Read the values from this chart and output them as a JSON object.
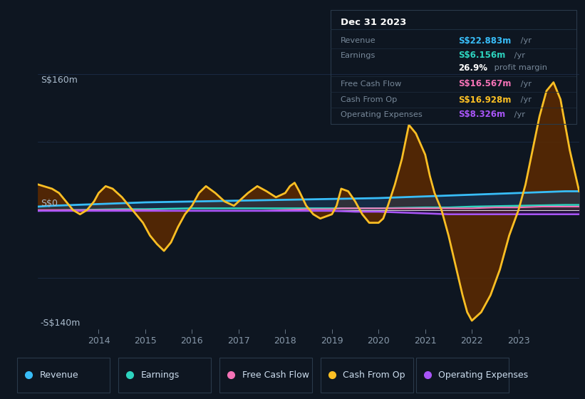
{
  "background_color": "#0e1621",
  "plot_bg_color": "#0e1621",
  "title_box_bg": "#050a0f",
  "legend_bg": "#0e1621",
  "ylim": [
    -140,
    160
  ],
  "xlim": [
    2012.7,
    2024.3
  ],
  "xticks": [
    2014,
    2015,
    2016,
    2017,
    2018,
    2019,
    2020,
    2021,
    2022,
    2023
  ],
  "zero_line_color": "#ffffff",
  "revenue_color": "#38bdf8",
  "revenue_fill": "#1a3a5c",
  "earnings_color": "#2dd4bf",
  "earnings_fill": "#0d4a40",
  "fcf_color": "#f472b6",
  "fcf_fill": "#5c1030",
  "cfop_color": "#fbbf24",
  "cfop_fill": "#5c2a00",
  "opex_color": "#a855f7",
  "opex_fill": "#3b1060",
  "legend_items": [
    {
      "label": "Revenue",
      "color": "#38bdf8"
    },
    {
      "label": "Earnings",
      "color": "#2dd4bf"
    },
    {
      "label": "Free Cash Flow",
      "color": "#f472b6"
    },
    {
      "label": "Cash From Op",
      "color": "#fbbf24"
    },
    {
      "label": "Operating Expenses",
      "color": "#a855f7"
    }
  ],
  "info_date": "Dec 31 2023",
  "info_rows": [
    {
      "label": "Revenue",
      "value": "S$22.883m",
      "unit": " /yr",
      "color": "#38bdf8"
    },
    {
      "label": "Earnings",
      "value": "S$6.156m",
      "unit": " /yr",
      "color": "#2dd4bf"
    },
    {
      "label": "",
      "value": "26.9%",
      "unit": " profit margin",
      "color": "#ffffff"
    },
    {
      "label": "Free Cash Flow",
      "value": "S$16.567m",
      "unit": " /yr",
      "color": "#f472b6"
    },
    {
      "label": "Cash From Op",
      "value": "S$16.928m",
      "unit": " /yr",
      "color": "#fbbf24"
    },
    {
      "label": "Operating Expenses",
      "value": "S$8.326m",
      "unit": " /yr",
      "color": "#a855f7"
    }
  ]
}
